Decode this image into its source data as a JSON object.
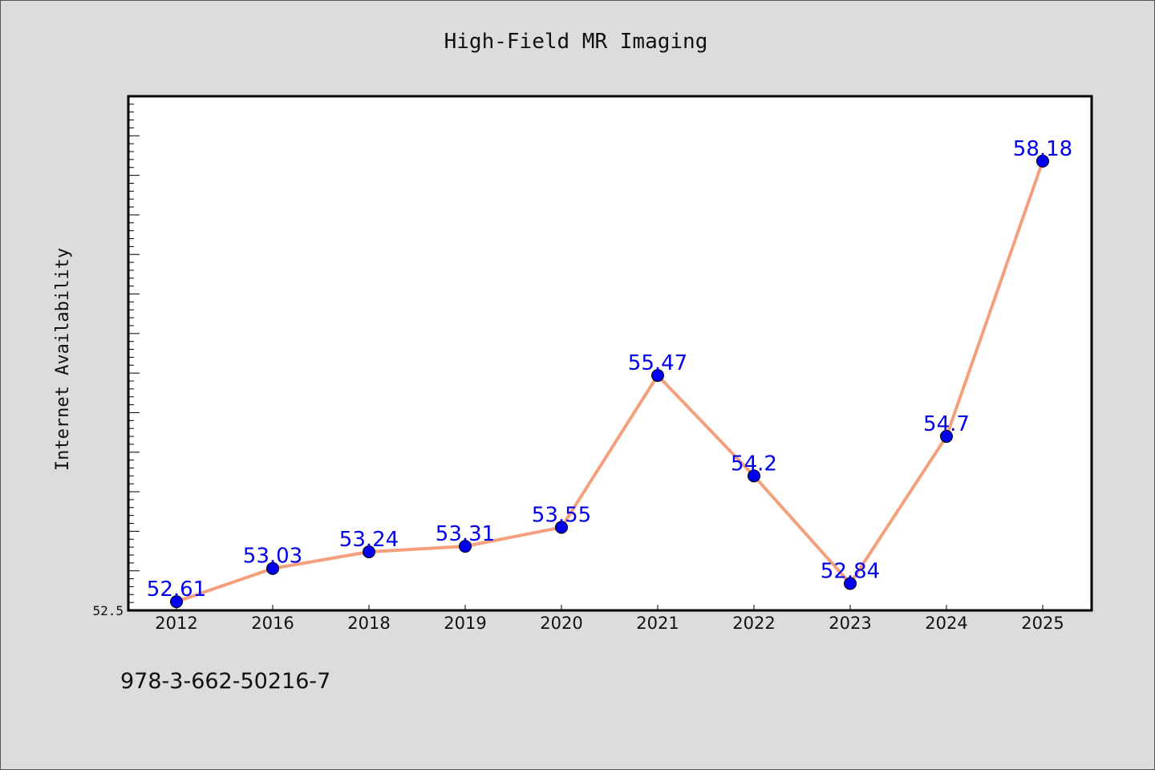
{
  "chart_data": {
    "type": "line",
    "title": "High-Field MR Imaging",
    "ylabel": "Internet Availability",
    "xlabel": "",
    "categories": [
      "2012",
      "2016",
      "2018",
      "2019",
      "2020",
      "2021",
      "2022",
      "2023",
      "2024",
      "2025"
    ],
    "series": [
      {
        "values": [
          52.61,
          53.03,
          53.24,
          53.31,
          53.55,
          55.47,
          54.2,
          52.84,
          54.7,
          58.18
        ],
        "labels": [
          "52.61",
          "53.03",
          "53.24",
          "53.31",
          "53.55",
          "55.47",
          "54.2",
          "52.84",
          "54.7",
          "58.18"
        ],
        "line_color": "#f4a07c",
        "marker_color": "#0000ee",
        "label_color": "#0000ee"
      }
    ],
    "ylim": [
      52.5,
      59.0
    ],
    "ytick_label": "52.5",
    "grid": false,
    "legend": "none"
  },
  "footer": {
    "text": "978-3-662-50216-7"
  }
}
